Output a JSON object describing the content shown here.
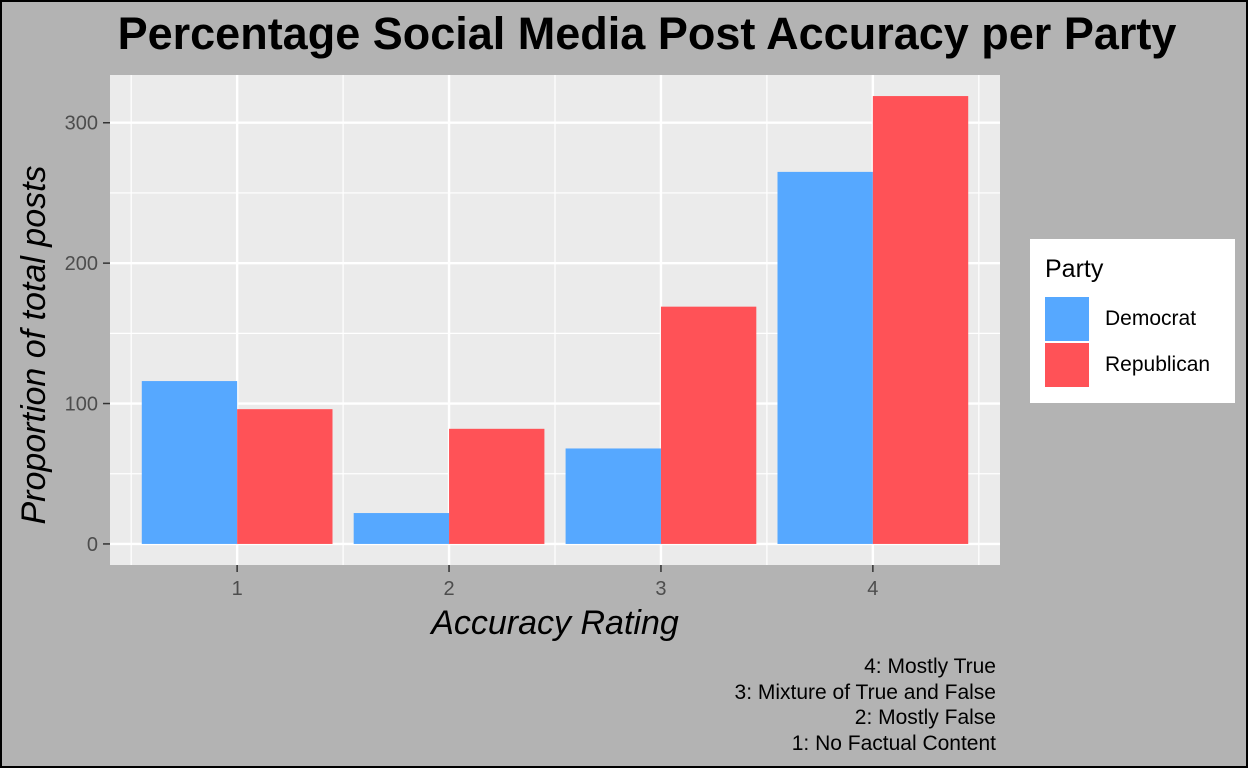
{
  "chart_data": {
    "type": "bar",
    "title": "Percentage Social Media Post Accuracy per Party",
    "xlabel": "Accuracy Rating",
    "ylabel": "Proportion of total posts",
    "categories": [
      "1",
      "2",
      "3",
      "4"
    ],
    "series": [
      {
        "name": "Democrat",
        "color": "#56a8ff",
        "values": [
          116,
          22,
          68,
          265
        ]
      },
      {
        "name": "Republican",
        "color": "#ff5257",
        "values": [
          96,
          82,
          169,
          319
        ]
      }
    ],
    "y_ticks": [
      "0",
      "100",
      "200",
      "300"
    ],
    "ylim": [
      -15,
      334
    ],
    "grid": true,
    "legend": {
      "title": "Party",
      "position": "right"
    },
    "caption": [
      "4: Mostly True",
      "3: Mixture of True and False",
      "2: Mostly False",
      "1: No Factual Content"
    ]
  }
}
